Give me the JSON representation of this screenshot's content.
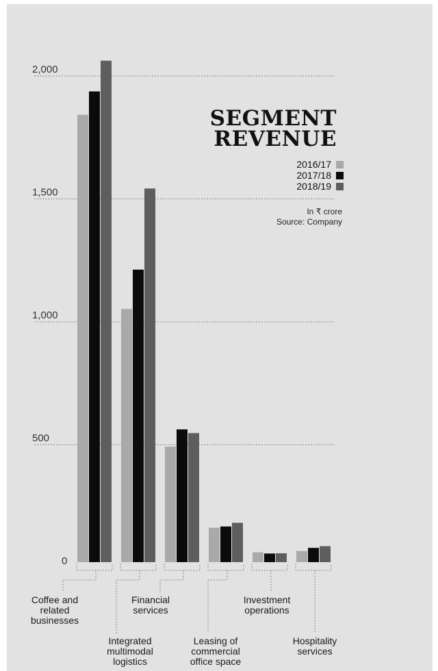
{
  "chart_data": {
    "type": "bar",
    "title": "SEGMENT REVENUE",
    "title_lines": [
      "SEGMENT",
      "REVENUE"
    ],
    "unit_note": "In ₹ crore",
    "source": "Source: Company",
    "categories": [
      "Coffee and related businesses",
      "Integrated multimodal logistics",
      "Financial services",
      "Leasing of commercial office space",
      "Investment operations",
      "Hospitality services"
    ],
    "category_label_lines": [
      [
        "Coffee and",
        "related",
        "businesses"
      ],
      [
        "Integrated",
        "multimodal",
        "logistics"
      ],
      [
        "Financial",
        "services"
      ],
      [
        "Leasing of",
        "commercial",
        "office space"
      ],
      [
        "Investment",
        "operations"
      ],
      [
        "Hospitality",
        "services"
      ]
    ],
    "series": [
      {
        "name": "2016/17",
        "color": "#a9a9a9",
        "values": [
          1820,
          1030,
          470,
          140,
          40,
          45
        ]
      },
      {
        "name": "2017/18",
        "color": "#0b0b0b",
        "values": [
          1915,
          1190,
          540,
          145,
          35,
          58
        ]
      },
      {
        "name": "2018/19",
        "color": "#5e5e5e",
        "values": [
          2040,
          1520,
          525,
          160,
          36,
          65
        ]
      }
    ],
    "y_ticks": [
      "0",
      "500",
      "1,000",
      "1,500",
      "2,000"
    ],
    "ylim": [
      0,
      2000
    ],
    "grid": true,
    "legend_position": "top-right"
  }
}
